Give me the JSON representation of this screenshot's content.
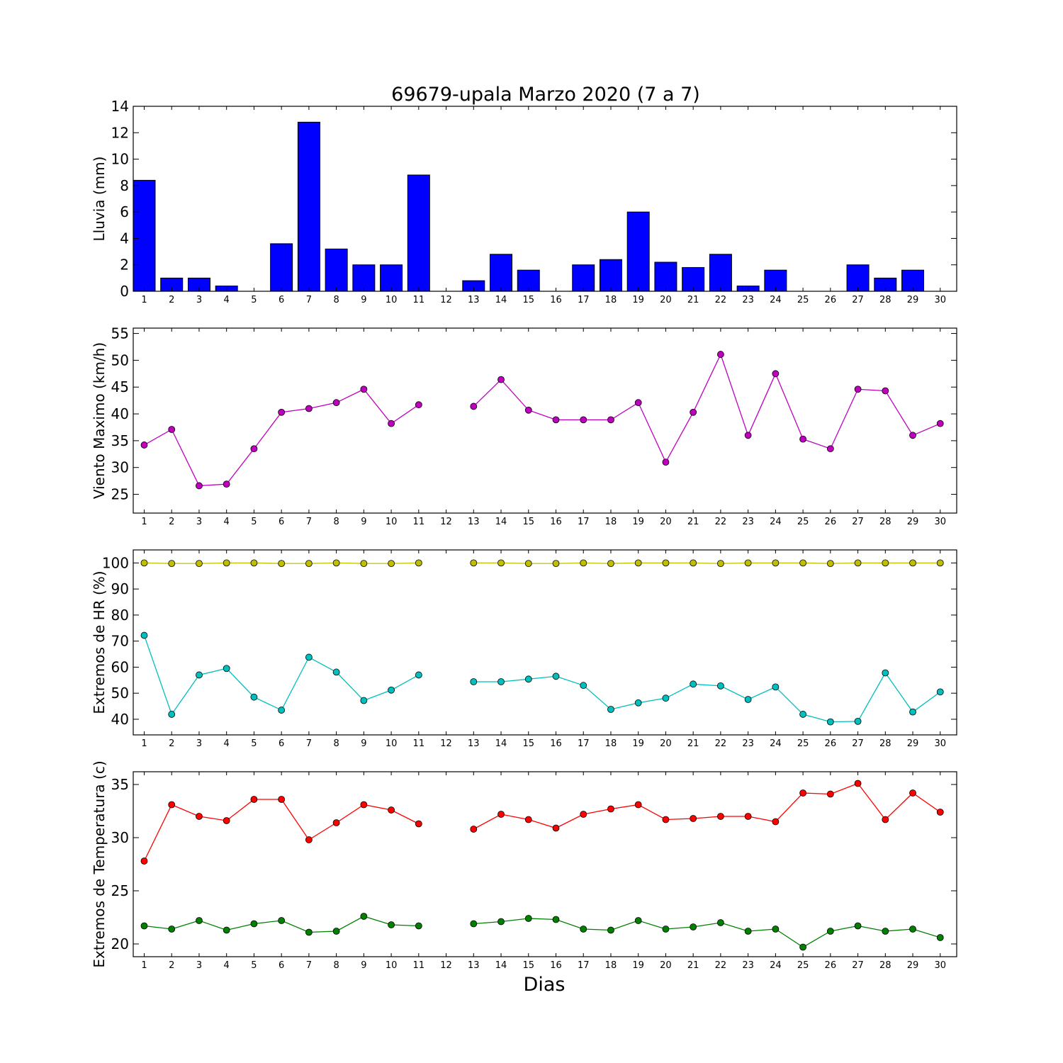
{
  "title": "69679-upala Marzo 2020  (7 a 7)",
  "xlabel": "Dias",
  "colors": {
    "rain": "#0000ff",
    "wind": "#bf00bf",
    "hr_max": "#bfbf00",
    "hr_min": "#00bfbf",
    "t_max": "#ff0000",
    "t_min": "#008000"
  },
  "chart_data": [
    {
      "type": "bar",
      "ylabel": "Lluvia (mm)",
      "ylim": [
        0,
        14
      ],
      "yticks": [
        0,
        2,
        4,
        6,
        8,
        10,
        12,
        14
      ],
      "categories": [
        "1",
        "2",
        "3",
        "4",
        "5",
        "6",
        "7",
        "8",
        "9",
        "10",
        "11",
        "12",
        "13",
        "14",
        "15",
        "16",
        "17",
        "18",
        "19",
        "20",
        "21",
        "22",
        "23",
        "24",
        "25",
        "26",
        "27",
        "28",
        "29",
        "30"
      ],
      "series": [
        {
          "values": [
            8.4,
            1.0,
            1.0,
            0.4,
            0.0,
            3.6,
            12.8,
            3.2,
            2.0,
            2.0,
            8.8,
            0.0,
            0.8,
            2.8,
            1.6,
            0.0,
            2.0,
            2.4,
            6.0,
            2.2,
            1.8,
            2.8,
            0.4,
            1.6,
            0.0,
            0.0,
            2.0,
            1.0,
            1.6,
            0.0
          ],
          "color": "#0000ff"
        }
      ]
    },
    {
      "type": "line",
      "ylabel": "Viento Maximo (km/h)",
      "ylim": [
        21.5,
        56
      ],
      "yticks": [
        25,
        30,
        35,
        40,
        45,
        50,
        55
      ],
      "categories": [
        "1",
        "2",
        "3",
        "4",
        "5",
        "6",
        "7",
        "8",
        "9",
        "10",
        "11",
        "12",
        "13",
        "14",
        "15",
        "16",
        "17",
        "18",
        "19",
        "20",
        "21",
        "22",
        "23",
        "24",
        "25",
        "26",
        "27",
        "28",
        "29",
        "30"
      ],
      "series": [
        {
          "values": [
            34.2,
            37.1,
            26.6,
            26.9,
            33.5,
            40.3,
            41.0,
            42.1,
            44.6,
            38.2,
            41.7,
            null,
            41.4,
            46.4,
            40.7,
            38.9,
            38.9,
            38.9,
            42.1,
            31.0,
            40.3,
            51.1,
            36.0,
            47.5,
            35.3,
            33.5,
            44.6,
            44.3,
            36.0,
            38.2
          ],
          "color": "#bf00bf"
        }
      ]
    },
    {
      "type": "line",
      "ylabel": "Extremos de HR (%)",
      "ylim": [
        34,
        105
      ],
      "yticks": [
        40,
        50,
        60,
        70,
        80,
        90,
        100
      ],
      "categories": [
        "1",
        "2",
        "3",
        "4",
        "5",
        "6",
        "7",
        "8",
        "9",
        "10",
        "11",
        "12",
        "13",
        "14",
        "15",
        "16",
        "17",
        "18",
        "19",
        "20",
        "21",
        "22",
        "23",
        "24",
        "25",
        "26",
        "27",
        "28",
        "29",
        "30"
      ],
      "series": [
        {
          "values": [
            100,
            99.8,
            99.8,
            100,
            100,
            99.8,
            99.8,
            100,
            99.8,
            99.8,
            100,
            null,
            100,
            100,
            99.8,
            99.8,
            100,
            99.8,
            100,
            100,
            100,
            99.8,
            100,
            100,
            100,
            99.8,
            100,
            100,
            100,
            100
          ],
          "color": "#bfbf00"
        },
        {
          "values": [
            72.2,
            41.9,
            57.0,
            59.5,
            48.5,
            43.5,
            63.8,
            58.1,
            47.2,
            51.2,
            57.0,
            null,
            54.4,
            54.4,
            55.4,
            56.5,
            53.0,
            43.8,
            46.3,
            48.1,
            53.5,
            52.8,
            47.6,
            52.4,
            41.9,
            39.0,
            39.2,
            57.8,
            42.8,
            50.5
          ],
          "color": "#00bfbf"
        }
      ]
    },
    {
      "type": "line",
      "ylabel": "Extremos de Temperatura (c)",
      "ylim": [
        18.8,
        36.2
      ],
      "yticks": [
        20,
        25,
        30,
        35
      ],
      "categories": [
        "1",
        "2",
        "3",
        "4",
        "5",
        "6",
        "7",
        "8",
        "9",
        "10",
        "11",
        "12",
        "13",
        "14",
        "15",
        "16",
        "17",
        "18",
        "19",
        "20",
        "21",
        "22",
        "23",
        "24",
        "25",
        "26",
        "27",
        "28",
        "29",
        "30"
      ],
      "series": [
        {
          "values": [
            27.8,
            33.1,
            32.0,
            31.6,
            33.6,
            33.6,
            29.8,
            31.4,
            33.1,
            32.6,
            31.3,
            null,
            30.8,
            32.2,
            31.7,
            30.9,
            32.2,
            32.7,
            33.1,
            31.7,
            31.8,
            32.0,
            32.0,
            31.5,
            34.2,
            34.1,
            35.1,
            31.7,
            34.2,
            32.4
          ],
          "color": "#ff0000"
        },
        {
          "values": [
            21.7,
            21.4,
            22.2,
            21.3,
            21.9,
            22.2,
            21.1,
            21.2,
            22.6,
            21.8,
            21.7,
            null,
            21.9,
            22.1,
            22.4,
            22.3,
            21.4,
            21.3,
            22.2,
            21.4,
            21.6,
            22.0,
            21.2,
            21.4,
            19.7,
            21.2,
            21.7,
            21.2,
            21.4,
            20.6
          ],
          "color": "#008000"
        }
      ]
    }
  ]
}
